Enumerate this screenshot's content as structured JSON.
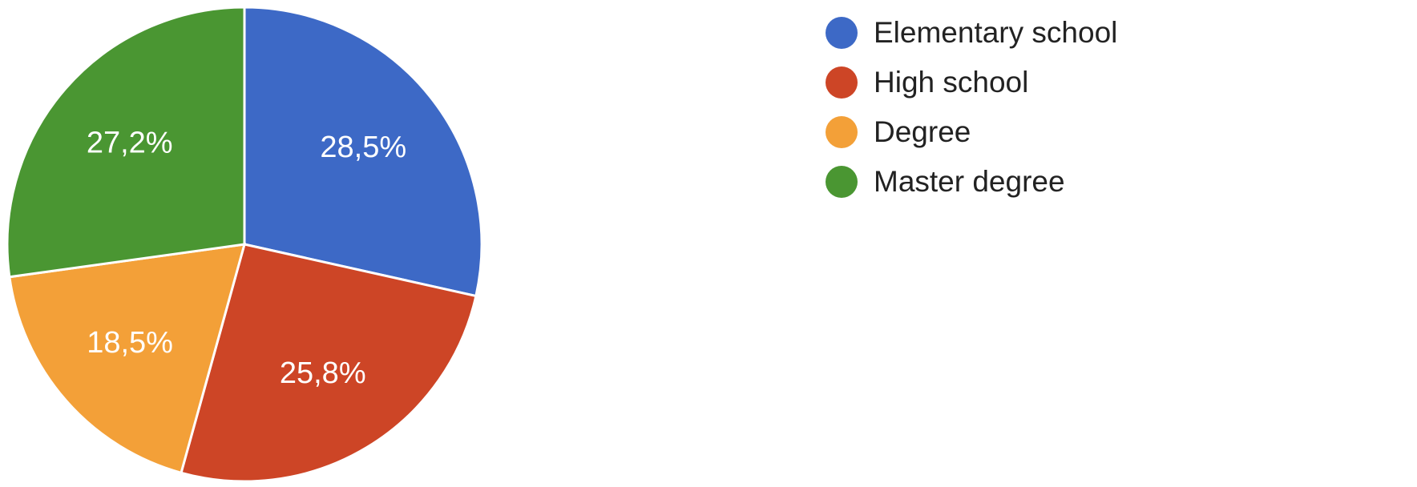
{
  "chart_data": {
    "type": "pie",
    "start_angle_deg": 90,
    "direction": "clockwise",
    "categories": [
      "Elementary school",
      "High school",
      "Degree",
      "Master degree"
    ],
    "values": [
      28.5,
      25.8,
      18.5,
      27.2
    ],
    "value_labels": [
      "28,5%",
      "25,8%",
      "18,5%",
      "27,2%"
    ],
    "colors": [
      "#3d69c6",
      "#cd4526",
      "#f3a038",
      "#4a9632"
    ],
    "legend_position": "right"
  }
}
